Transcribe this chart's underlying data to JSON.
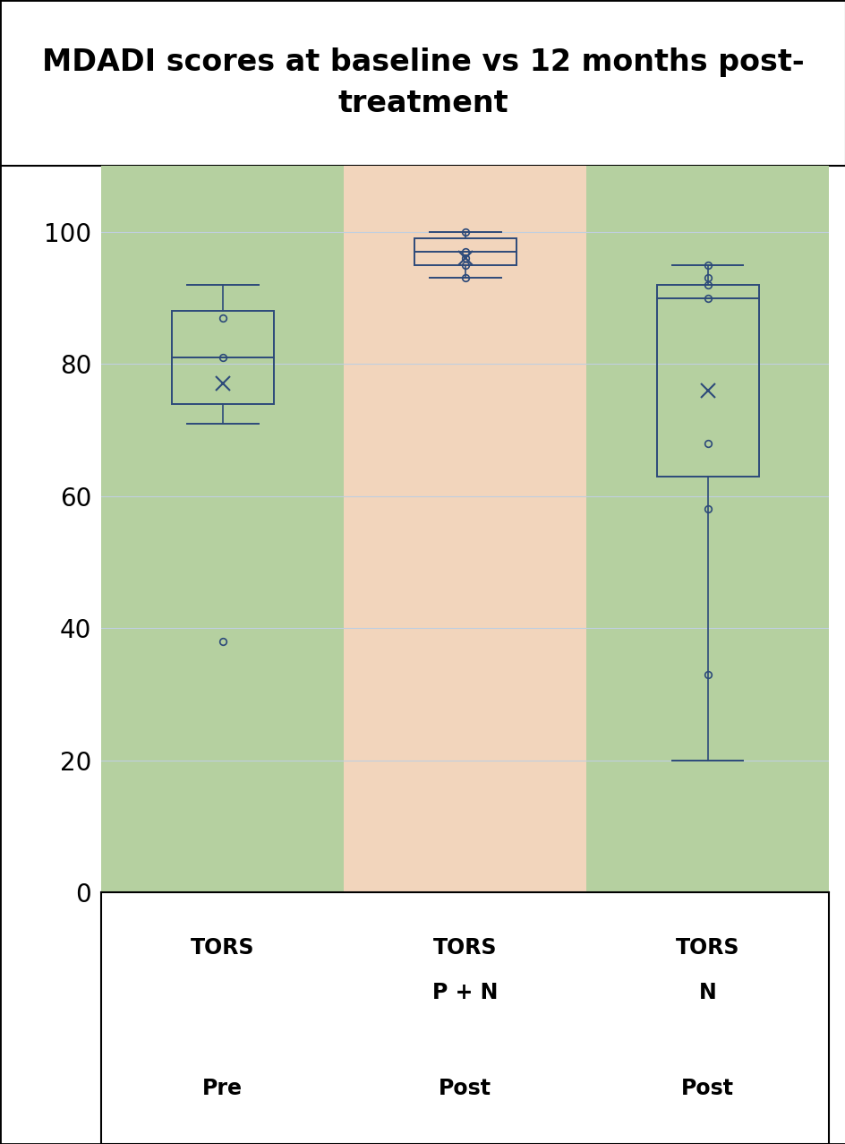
{
  "title": "MDADI scores at baseline vs 12 months post-\ntreatment",
  "title_fontsize": 24,
  "box1": {
    "whisker_low": 71,
    "Q1": 74,
    "median": 81,
    "Q3": 88,
    "whisker_high": 92,
    "mean": 77,
    "outliers": [
      38
    ],
    "points": [
      87,
      81
    ],
    "bg_color": "#b5d0a0"
  },
  "box2": {
    "whisker_low": 93,
    "Q1": 95,
    "median": 97,
    "Q3": 99,
    "whisker_high": 100,
    "mean": 96,
    "outliers": [],
    "points": [
      93,
      95,
      96,
      97,
      100
    ],
    "bg_color": "#f2d5bc"
  },
  "box3": {
    "whisker_low": 20,
    "Q1": 63,
    "median": 90,
    "Q3": 92,
    "whisker_high": 95,
    "mean": 76,
    "outliers": [
      33
    ],
    "points": [
      58,
      68,
      90,
      92,
      93,
      95
    ],
    "bg_color": "#b5d0a0"
  },
  "box_color": "#2d4a7a",
  "ylim": [
    0,
    110
  ],
  "yticks": [
    0,
    20,
    40,
    60,
    80,
    100
  ],
  "grid_color": "#c0cfe0",
  "labels": [
    {
      "line1": "TORS",
      "line2": "",
      "line3": "Pre"
    },
    {
      "line1": "TORS",
      "line2": "P + N",
      "line3": "Post"
    },
    {
      "line1": "TORS",
      "line2": "N",
      "line3": "Post"
    }
  ]
}
